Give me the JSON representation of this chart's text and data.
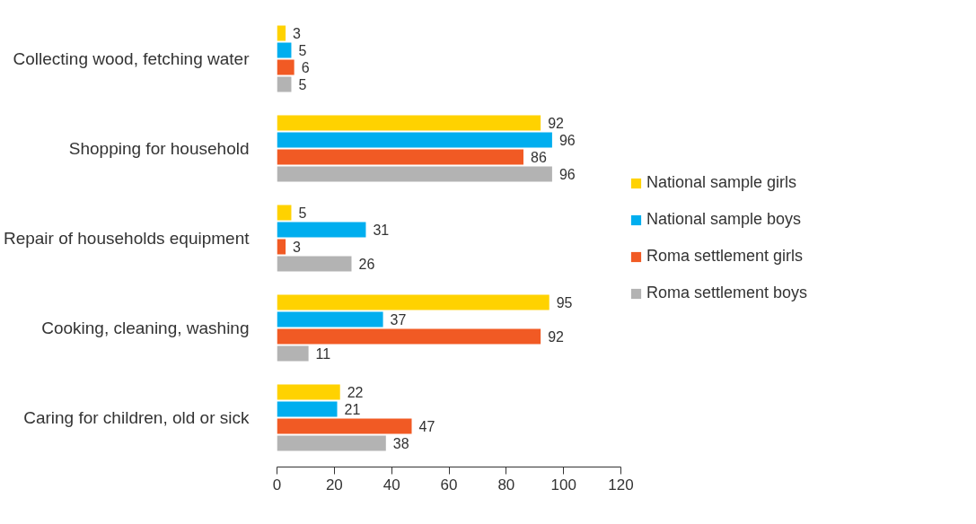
{
  "chart_data": {
    "type": "bar",
    "orientation": "horizontal",
    "categories": [
      "Collecting wood, fetching water",
      "Shopping for household",
      "Repair of households equipment",
      "Cooking, cleaning, washing",
      "Caring for children, old or sick"
    ],
    "series": [
      {
        "name": "National sample girls",
        "color": "#ffd200",
        "values": [
          3,
          92,
          5,
          95,
          22
        ]
      },
      {
        "name": "National sample boys",
        "color": "#00aeef",
        "values": [
          5,
          96,
          31,
          37,
          21
        ]
      },
      {
        "name": "Roma settlement girls",
        "color": "#f15a24",
        "values": [
          6,
          86,
          3,
          92,
          47
        ]
      },
      {
        "name": "Roma settlement boys",
        "color": "#b3b3b3",
        "values": [
          5,
          96,
          26,
          11,
          38
        ]
      }
    ],
    "xlim": [
      0,
      120
    ],
    "xticks": [
      0,
      20,
      40,
      60,
      80,
      100,
      120
    ],
    "grid": false,
    "legend": "right",
    "data_labels": true
  }
}
